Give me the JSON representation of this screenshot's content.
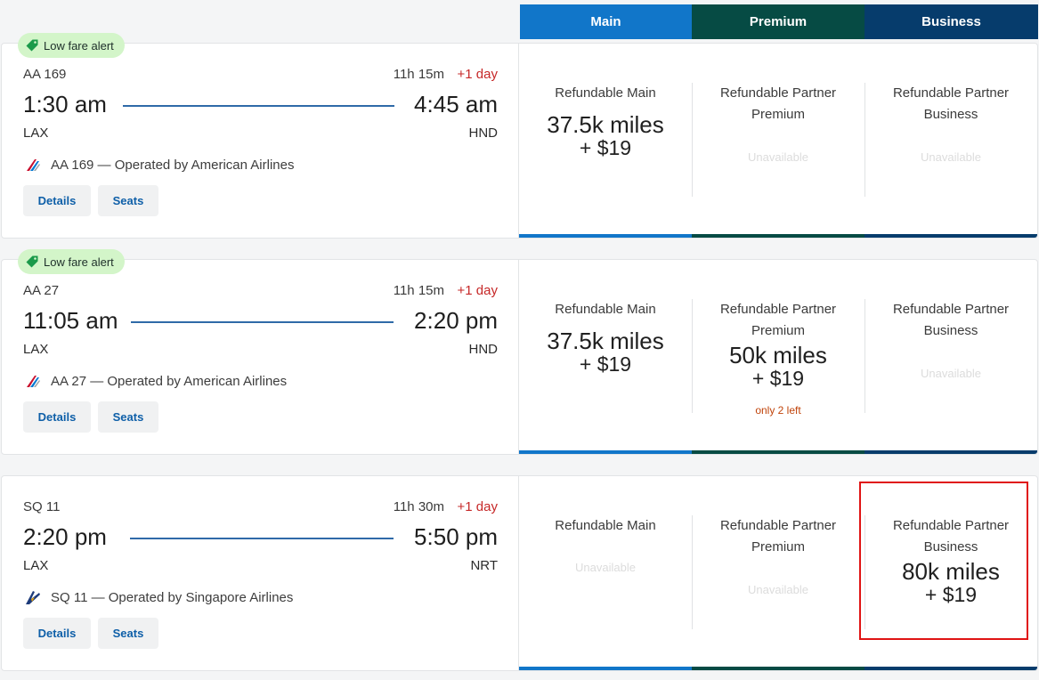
{
  "colors": {
    "main": "#1176c9",
    "premium": "#064b44",
    "business": "#063c6c",
    "badge_bg": "#d3f5c9",
    "alert_red": "#c62828"
  },
  "header": {
    "main": "Main",
    "premium": "Premium",
    "business": "Business"
  },
  "flights": [
    {
      "badge": "Low fare alert",
      "flight_number": "AA 169",
      "duration": "11h 15m",
      "day_offset": "+1 day",
      "departure_time": "1:30 am",
      "arrival_time": "4:45 am",
      "origin": "LAX",
      "destination": "HND",
      "operated_by": "AA 169 — Operated by American Airlines",
      "airline_icon": "american-airlines-logo",
      "details_label": "Details",
      "seats_label": "Seats",
      "fares": [
        {
          "label": "Refundable Main",
          "miles": "37.5k miles",
          "cash": "+ $19",
          "status": ""
        },
        {
          "label": "Refundable Partner Premium",
          "miles": "",
          "cash": "",
          "status": "Unavailable"
        },
        {
          "label": "Refundable Partner Business",
          "miles": "",
          "cash": "",
          "status": "Unavailable"
        }
      ]
    },
    {
      "badge": "Low fare alert",
      "flight_number": "AA 27",
      "duration": "11h 15m",
      "day_offset": "+1 day",
      "departure_time": "11:05 am",
      "arrival_time": "2:20 pm",
      "origin": "LAX",
      "destination": "HND",
      "operated_by": "AA 27 — Operated by American Airlines",
      "airline_icon": "american-airlines-logo",
      "details_label": "Details",
      "seats_label": "Seats",
      "fares": [
        {
          "label": "Refundable Main",
          "miles": "37.5k miles",
          "cash": "+ $19",
          "status": ""
        },
        {
          "label": "Refundable Partner Premium",
          "miles": "50k miles",
          "cash": "+ $19",
          "status": "",
          "seats_left": "only 2 left"
        },
        {
          "label": "Refundable Partner Business",
          "miles": "",
          "cash": "",
          "status": "Unavailable"
        }
      ]
    },
    {
      "badge": "",
      "flight_number": "SQ 11",
      "duration": "11h 30m",
      "day_offset": "+1 day",
      "departure_time": "2:20 pm",
      "arrival_time": "5:50 pm",
      "origin": "LAX",
      "destination": "NRT",
      "operated_by": "SQ 11 — Operated by Singapore Airlines",
      "airline_icon": "singapore-airlines-logo",
      "details_label": "Details",
      "seats_label": "Seats",
      "fares": [
        {
          "label": "Refundable Main",
          "miles": "",
          "cash": "",
          "status": "Unavailable"
        },
        {
          "label": "Refundable Partner Premium",
          "miles": "",
          "cash": "",
          "status": "Unavailable"
        },
        {
          "label": "Refundable Partner Business",
          "miles": "80k miles",
          "cash": "+ $19",
          "status": "",
          "highlighted": true
        }
      ]
    }
  ]
}
